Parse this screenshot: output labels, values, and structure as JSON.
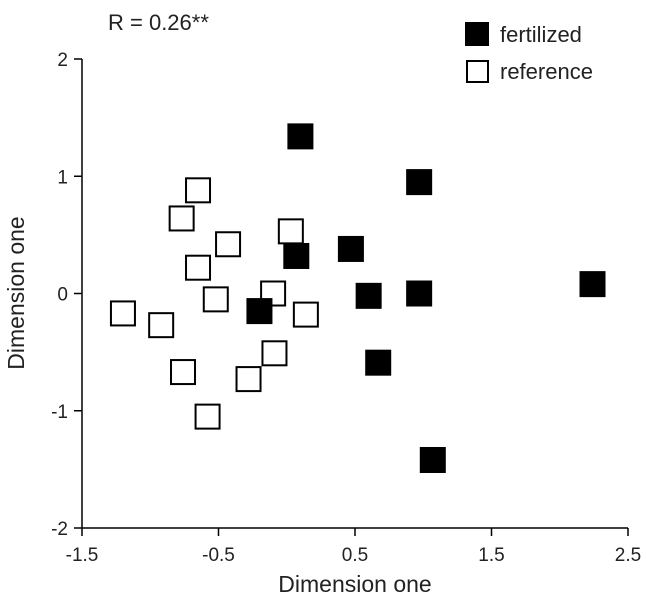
{
  "chart_data": {
    "type": "scatter",
    "annotation": "R = 0.26**",
    "xlabel": "Dimension one",
    "ylabel": "Dimension one",
    "xlim": [
      -1.5,
      2.5
    ],
    "ylim": [
      -2,
      2
    ],
    "xticks": [
      "-1.5",
      "-0.5",
      "0.5",
      "1.5",
      "2.5"
    ],
    "yticks": [
      "2",
      "1",
      "0",
      "-1",
      "-2"
    ],
    "grid": false,
    "legend_position": "top-right",
    "series": [
      {
        "name": "fertilized",
        "marker": "filled-square",
        "color": "#000000",
        "points": [
          {
            "x": 0.1,
            "y": 1.34
          },
          {
            "x": 0.97,
            "y": 0.95
          },
          {
            "x": 0.47,
            "y": 0.38
          },
          {
            "x": 0.07,
            "y": 0.32
          },
          {
            "x": 0.6,
            "y": -0.02
          },
          {
            "x": 0.97,
            "y": 0.0
          },
          {
            "x": 2.24,
            "y": 0.08
          },
          {
            "x": -0.2,
            "y": -0.15
          },
          {
            "x": 0.67,
            "y": -0.59
          },
          {
            "x": 1.07,
            "y": -1.42
          }
        ]
      },
      {
        "name": "reference",
        "marker": "open-square",
        "color": "#000000",
        "points": [
          {
            "x": -0.65,
            "y": 0.88
          },
          {
            "x": -0.77,
            "y": 0.64
          },
          {
            "x": -0.43,
            "y": 0.42
          },
          {
            "x": 0.03,
            "y": 0.53
          },
          {
            "x": -0.65,
            "y": 0.22
          },
          {
            "x": -0.52,
            "y": -0.05
          },
          {
            "x": -0.1,
            "y": 0.0
          },
          {
            "x": 0.14,
            "y": -0.18
          },
          {
            "x": -1.2,
            "y": -0.17
          },
          {
            "x": -0.92,
            "y": -0.27
          },
          {
            "x": -0.09,
            "y": -0.51
          },
          {
            "x": -0.76,
            "y": -0.67
          },
          {
            "x": -0.28,
            "y": -0.73
          },
          {
            "x": -0.58,
            "y": -1.05
          }
        ]
      }
    ]
  }
}
